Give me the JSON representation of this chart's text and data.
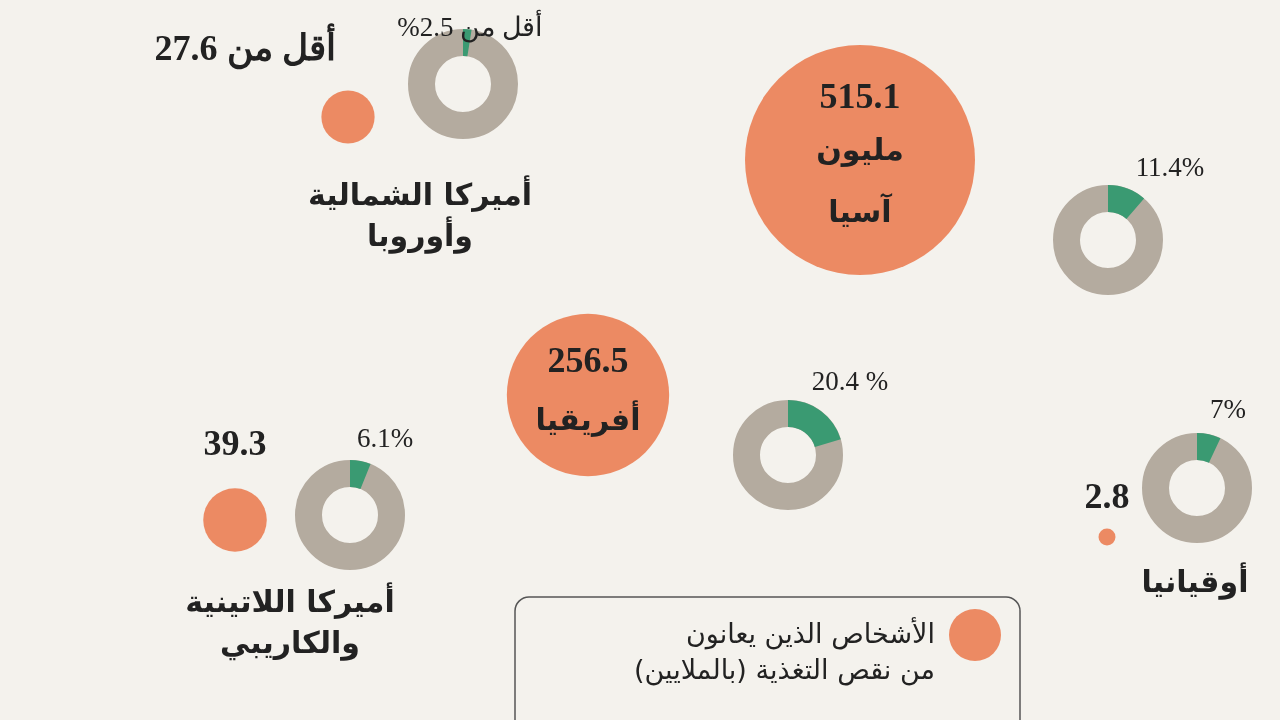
{
  "chart_data": {
    "type": "other",
    "categories": [
      "أميركا الشمالية وأوروبا",
      "آسيا",
      "أفريقيا",
      "أميركا اللاتينية والكاريبي",
      "أوقيانيا"
    ],
    "series": [
      {
        "name": "الأشخاص الذين يعانون من نقص التغذية (بالملايين)",
        "color": "#ec8a63",
        "values": [
          27.6,
          515.1,
          256.5,
          39.3,
          2.8
        ],
        "value_labels": [
          "أقل من 27.6",
          "515.1\nمليون",
          "256.5",
          "39.3",
          "2.8"
        ]
      },
      {
        "type": "donut",
        "color": "#3a9a72",
        "values": [
          2.5,
          11.4,
          20.4,
          6.1,
          7
        ],
        "value_labels": [
          "أقل من 2.5%",
          "11.4%",
          "20.4 %",
          "6.1%",
          "7%"
        ]
      }
    ],
    "legend": "bottom"
  }
}
